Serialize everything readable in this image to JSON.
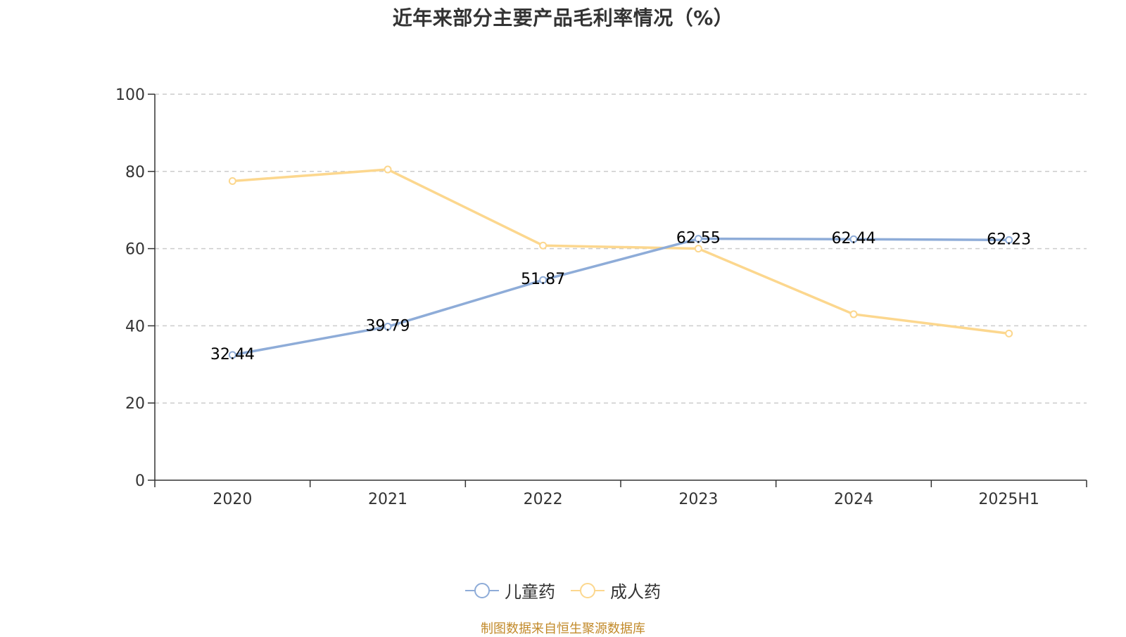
{
  "chart_data": {
    "type": "line",
    "title": "近年来部分主要产品毛利率情况（%）",
    "categories": [
      "2020",
      "2021",
      "2022",
      "2023",
      "2024",
      "2025H1"
    ],
    "ylim": [
      0,
      100
    ],
    "yticks": [
      0,
      20,
      40,
      60,
      80,
      100
    ],
    "grid": true,
    "legend_position": "bottom",
    "series": [
      {
        "name": "儿童药",
        "color": "#8eacd8",
        "values": [
          32.44,
          39.79,
          51.87,
          62.55,
          62.44,
          62.23
        ],
        "labels": [
          "32.44",
          "39.79",
          "51.87",
          "62.55",
          "62.44",
          "62.23"
        ]
      },
      {
        "name": "成人药",
        "color": "#fcd78e",
        "values": [
          77.5,
          80.5,
          60.8,
          60.0,
          43.0,
          38.0
        ]
      }
    ]
  },
  "source": "制图数据来自恒生聚源数据库"
}
